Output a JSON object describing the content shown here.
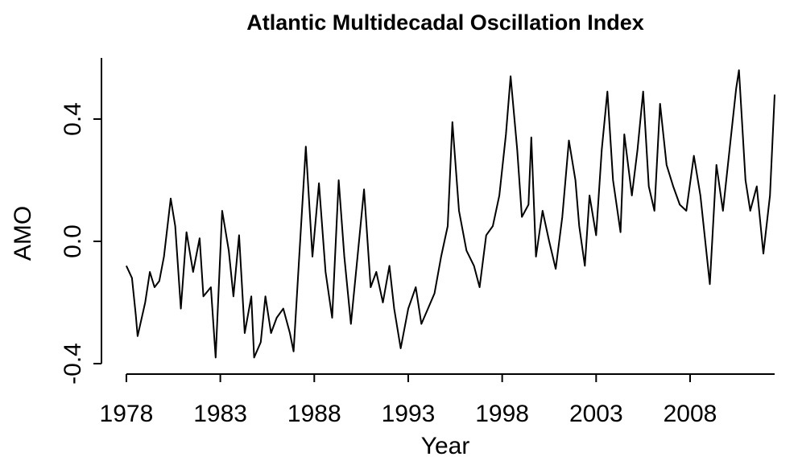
{
  "chart_data": {
    "type": "line",
    "title": "Atlantic Multidecadal Oscillation Index",
    "x_label": "Year",
    "y_label": "AMO",
    "x": [
      1978.0,
      1978.3,
      1978.5,
      1978.6,
      1979.0,
      1979.25,
      1979.5,
      1979.75,
      1980.0,
      1980.36,
      1980.6,
      1980.9,
      1981.2,
      1981.55,
      1981.9,
      1982.1,
      1982.5,
      1982.75,
      1983.1,
      1983.45,
      1983.7,
      1984.0,
      1984.3,
      1984.65,
      1984.8,
      1985.15,
      1985.4,
      1985.7,
      1986.0,
      1986.35,
      1986.7,
      1986.9,
      1987.2,
      1987.55,
      1987.9,
      1988.25,
      1988.6,
      1988.95,
      1989.3,
      1989.6,
      1989.95,
      1990.3,
      1990.65,
      1991.0,
      1991.3,
      1991.65,
      1992.0,
      1992.25,
      1992.6,
      1993.0,
      1993.4,
      1993.7,
      1994.05,
      1994.4,
      1994.75,
      1995.1,
      1995.35,
      1995.7,
      1996.1,
      1996.5,
      1996.8,
      1997.15,
      1997.5,
      1997.85,
      1998.2,
      1998.45,
      1998.8,
      1999.05,
      1999.4,
      1999.55,
      1999.8,
      2000.15,
      2000.5,
      2000.85,
      2001.2,
      2001.55,
      2001.9,
      2002.1,
      2002.4,
      2002.65,
      2003.0,
      2003.3,
      2003.6,
      2003.9,
      2004.3,
      2004.5,
      2004.9,
      2005.2,
      2005.5,
      2005.8,
      2006.1,
      2006.4,
      2006.75,
      2007.1,
      2007.45,
      2007.8,
      2008.2,
      2008.55,
      2009.05,
      2009.4,
      2009.75,
      2010.1,
      2010.45,
      2010.6,
      2010.95,
      2011.2,
      2011.55,
      2011.9,
      2012.25,
      2012.5
    ],
    "series": [
      {
        "color": "#000000",
        "values": [
          -0.08,
          -0.12,
          -0.24,
          -0.31,
          -0.2,
          -0.1,
          -0.15,
          -0.13,
          -0.05,
          0.14,
          0.05,
          -0.22,
          0.03,
          -0.1,
          0.01,
          -0.18,
          -0.15,
          -0.38,
          0.1,
          -0.03,
          -0.18,
          0.02,
          -0.3,
          -0.18,
          -0.38,
          -0.33,
          -0.18,
          -0.3,
          -0.25,
          -0.22,
          -0.3,
          -0.36,
          -0.05,
          0.31,
          -0.05,
          0.19,
          -0.1,
          -0.25,
          0.2,
          -0.05,
          -0.27,
          -0.05,
          0.17,
          -0.15,
          -0.1,
          -0.2,
          -0.08,
          -0.22,
          -0.35,
          -0.22,
          -0.15,
          -0.27,
          -0.22,
          -0.17,
          -0.05,
          0.05,
          0.39,
          0.1,
          -0.03,
          -0.08,
          -0.15,
          0.02,
          0.05,
          0.15,
          0.35,
          0.54,
          0.3,
          0.08,
          0.12,
          0.34,
          -0.05,
          0.1,
          0.0,
          -0.09,
          0.08,
          0.33,
          0.2,
          0.05,
          -0.08,
          0.15,
          0.02,
          0.3,
          0.49,
          0.2,
          0.03,
          0.35,
          0.15,
          0.3,
          0.49,
          0.18,
          0.1,
          0.45,
          0.25,
          0.18,
          0.12,
          0.1,
          0.28,
          0.15,
          -0.14,
          0.25,
          0.1,
          0.3,
          0.5,
          0.56,
          0.2,
          0.1,
          0.18,
          -0.04,
          0.15,
          0.48
        ]
      }
    ],
    "xlim": [
      1976.76,
      2013.7
    ],
    "xticks": [
      1978,
      1983,
      1988,
      1993,
      1998,
      2003,
      2008
    ],
    "ylim": [
      -0.43,
      0.6
    ],
    "yticks": [
      {
        "value": -0.4,
        "label": "-0.4"
      },
      {
        "value": 0,
        "label": "0.0"
      },
      {
        "value": 0.4,
        "label": "0.4"
      }
    ]
  }
}
